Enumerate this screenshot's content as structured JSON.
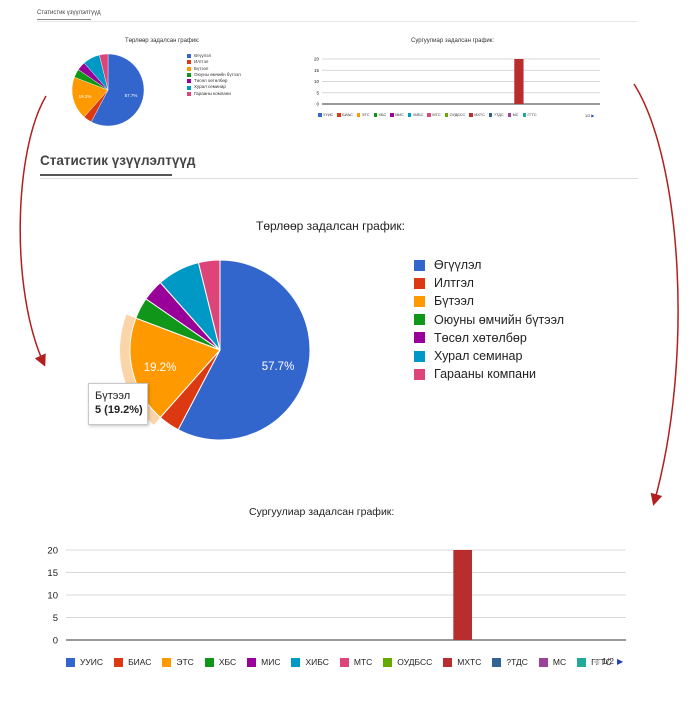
{
  "heading": "Статистик үзүүлэлтүүд",
  "pie": {
    "title": "Төрлөөр задалсан график:",
    "legend": [
      {
        "label": "Өгүүлэл",
        "color": "#3366cc"
      },
      {
        "label": "Илтгэл",
        "color": "#dc3912"
      },
      {
        "label": "Бүтээл",
        "color": "#ff9900"
      },
      {
        "label": "Оюуны өмчийн бүтээл",
        "color": "#109618"
      },
      {
        "label": "Төсөл хөтөлбөр",
        "color": "#990099"
      },
      {
        "label": "Хурал семинар",
        "color": "#0099c6"
      },
      {
        "label": "Гарааны компани",
        "color": "#dd4477"
      }
    ],
    "slice_labels": {
      "articles": "57.7%",
      "works": "19.2%"
    },
    "tooltip": {
      "name": "Бүтээл",
      "value": "5 (19.2%)"
    }
  },
  "bar": {
    "title": "Сургуулиар задалсан график:",
    "legend": [
      {
        "label": "УУИС",
        "color": "#3366cc"
      },
      {
        "label": "БИАС",
        "color": "#dc3912"
      },
      {
        "label": "ЭТС",
        "color": "#ff9900"
      },
      {
        "label": "ХБС",
        "color": "#109618"
      },
      {
        "label": "МИС",
        "color": "#990099"
      },
      {
        "label": "ХИБС",
        "color": "#0099c6"
      },
      {
        "label": "МТС",
        "color": "#dd4477"
      },
      {
        "label": "ОУДБСС",
        "color": "#66aa00"
      },
      {
        "label": "МХТС",
        "color": "#b82e2e"
      },
      {
        "label": "?ТДС",
        "color": "#316395"
      },
      {
        "label": "МС",
        "color": "#994499"
      },
      {
        "label": "ГГТС",
        "color": "#22aa99"
      }
    ],
    "pager": {
      "prev": "◀",
      "text": "1/2",
      "next": "▶"
    }
  },
  "chart_data": [
    {
      "type": "pie",
      "title": "Төрлөөр задалсан график:",
      "categories": [
        "Өгүүлэл",
        "Илтгэл",
        "Бүтээл",
        "Оюуны өмчийн бүтээл",
        "Төсөл хөтөлбөр",
        "Хурал семинар",
        "Гарааны компани"
      ],
      "values": [
        15,
        1,
        5,
        1,
        1,
        2,
        1
      ],
      "legend": "right"
    },
    {
      "type": "bar",
      "title": "Сургуулиар задалсан график:",
      "categories": [
        "УУИС",
        "БИАС",
        "ЭТС",
        "ХБС",
        "МИС",
        "ХИБС",
        "МТС",
        "ОУДБСС",
        "МХТС",
        "?ТДС",
        "МС",
        "ГГТС"
      ],
      "values": [
        0,
        0,
        0,
        0,
        0,
        0,
        0,
        0,
        20,
        0,
        0,
        0
      ],
      "ylim": [
        0,
        20
      ],
      "yticks": [
        0,
        5,
        10,
        15,
        20
      ],
      "grid": true,
      "legend": "bottom"
    }
  ]
}
